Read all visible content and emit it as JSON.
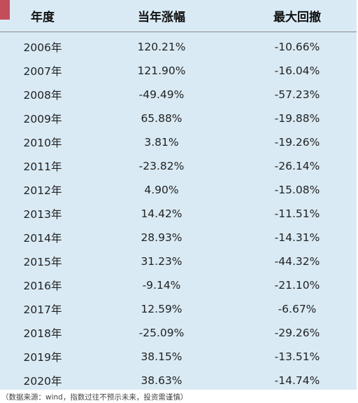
{
  "table": {
    "headers": [
      "年度",
      "当年涨幅",
      "最大回撤"
    ],
    "rows": [
      [
        "2006年",
        "120.21%",
        "-10.66%"
      ],
      [
        "2007年",
        "121.90%",
        "-16.04%"
      ],
      [
        "2008年",
        "-49.49%",
        "-57.23%"
      ],
      [
        "2009年",
        "65.88%",
        "-19.88%"
      ],
      [
        "2010年",
        "3.81%",
        "-19.26%"
      ],
      [
        "2011年",
        "-23.82%",
        "-26.14%"
      ],
      [
        "2012年",
        "4.90%",
        "-15.08%"
      ],
      [
        "2013年",
        "14.42%",
        "-11.51%"
      ],
      [
        "2014年",
        "28.93%",
        "-14.31%"
      ],
      [
        "2015年",
        "31.23%",
        "-44.32%"
      ],
      [
        "2016年",
        "-9.14%",
        "-21.10%"
      ],
      [
        "2017年",
        "12.59%",
        "-6.67%"
      ],
      [
        "2018年",
        "-25.09%",
        "-29.26%"
      ],
      [
        "2019年",
        "38.15%",
        "-13.51%"
      ],
      [
        "2020年",
        "38.63%",
        "-14.74%"
      ]
    ]
  },
  "footnote": "（数据来源：wind，指数过往不预示未来，投资需谨慎）",
  "colors": {
    "accent": "#c44d5a",
    "table_bg": "#d9eaf4"
  }
}
